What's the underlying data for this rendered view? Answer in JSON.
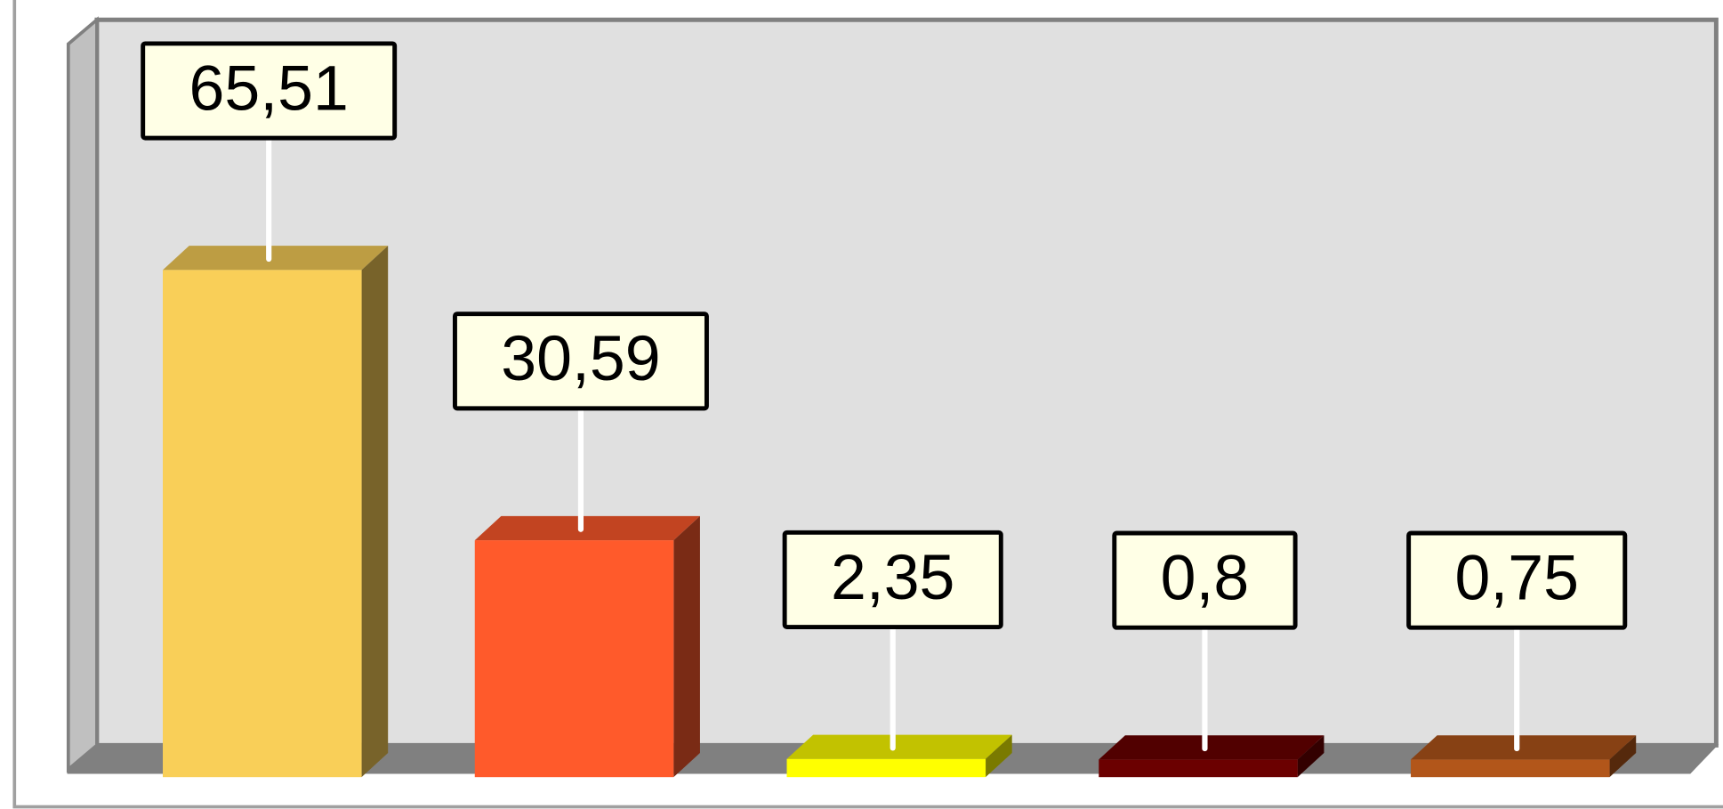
{
  "chart_data": {
    "type": "bar3d",
    "values": [
      65.51,
      30.59,
      2.35,
      0.8,
      0.75
    ],
    "value_labels": [
      "65,51",
      "30,59",
      "2,35",
      "0,8",
      "0,75"
    ],
    "colors": [
      "#f9cf58",
      "#ff5a2b",
      "#ffff00",
      "#6b0000",
      "#b2561a"
    ],
    "ylim": [
      0,
      70
    ]
  }
}
